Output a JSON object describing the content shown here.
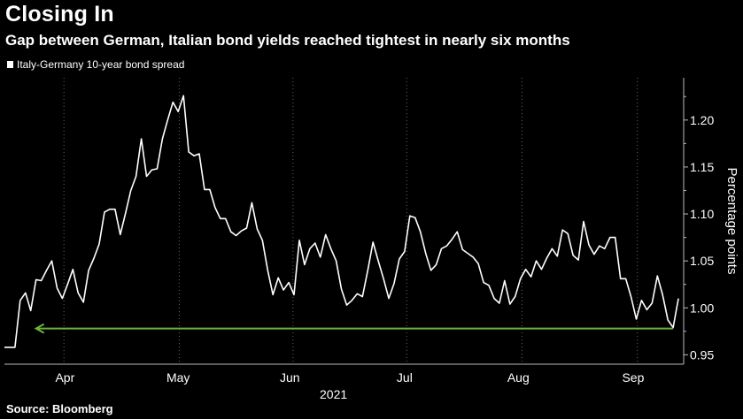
{
  "header": {
    "title": "Closing In",
    "subtitle": "Gap between German, Italian bond yields reached tightest in nearly six months"
  },
  "footer": {
    "source": "Source: Bloomberg"
  },
  "chart_data": {
    "type": "line",
    "title": "Closing In",
    "subtitle": "Gap between German, Italian bond yields reached tightest in nearly six months",
    "ylabel": "Percentage points",
    "xlabel": "2021",
    "x_ticks": [
      "Apr",
      "May",
      "Jun",
      "Jul",
      "Aug",
      "Sep"
    ],
    "y_ticks": [
      0.95,
      1.0,
      1.05,
      1.1,
      1.15,
      1.2
    ],
    "ylim": [
      0.94,
      1.245
    ],
    "xlim": [
      0,
      129
    ],
    "grid": "vertical dotted",
    "legend": "top-left",
    "colors": {
      "series": "#ffffff",
      "arrow": "#6db33f",
      "background": "#000000"
    },
    "series": [
      {
        "name": "Italy-Germany 10-year bond spread",
        "values": [
          0.958,
          0.958,
          0.958,
          1.008,
          1.016,
          0.997,
          1.03,
          1.029,
          1.04,
          1.05,
          1.021,
          1.01,
          1.025,
          1.041,
          1.016,
          1.006,
          1.04,
          1.053,
          1.068,
          1.102,
          1.105,
          1.105,
          1.078,
          1.101,
          1.125,
          1.14,
          1.18,
          1.14,
          1.147,
          1.148,
          1.18,
          1.2,
          1.219,
          1.209,
          1.226,
          1.166,
          1.162,
          1.164,
          1.126,
          1.126,
          1.107,
          1.095,
          1.095,
          1.081,
          1.077,
          1.082,
          1.085,
          1.112,
          1.084,
          1.072,
          1.04,
          1.014,
          1.032,
          1.019,
          1.027,
          1.014,
          1.072,
          1.046,
          1.063,
          1.069,
          1.054,
          1.078,
          1.063,
          1.05,
          1.02,
          1.003,
          1.008,
          1.015,
          1.012,
          1.04,
          1.07,
          1.05,
          1.031,
          1.01,
          1.026,
          1.052,
          1.06,
          1.098,
          1.096,
          1.081,
          1.058,
          1.04,
          1.046,
          1.063,
          1.066,
          1.073,
          1.081,
          1.062,
          1.058,
          1.054,
          1.047,
          1.027,
          1.024,
          1.01,
          1.005,
          1.029,
          1.004,
          1.012,
          1.031,
          1.041,
          1.033,
          1.05,
          1.041,
          1.053,
          1.063,
          1.055,
          1.083,
          1.079,
          1.056,
          1.051,
          1.092,
          1.067,
          1.057,
          1.066,
          1.063,
          1.075,
          1.075,
          1.031,
          1.031,
          1.012,
          0.988,
          1.008,
          0.998,
          1.005,
          1.034,
          1.014,
          0.987,
          0.979,
          1.01
        ]
      }
    ],
    "annotations": [
      {
        "type": "arrow",
        "direction": "left",
        "value": 0.978,
        "from_index": 127,
        "to_index": 6
      }
    ]
  }
}
